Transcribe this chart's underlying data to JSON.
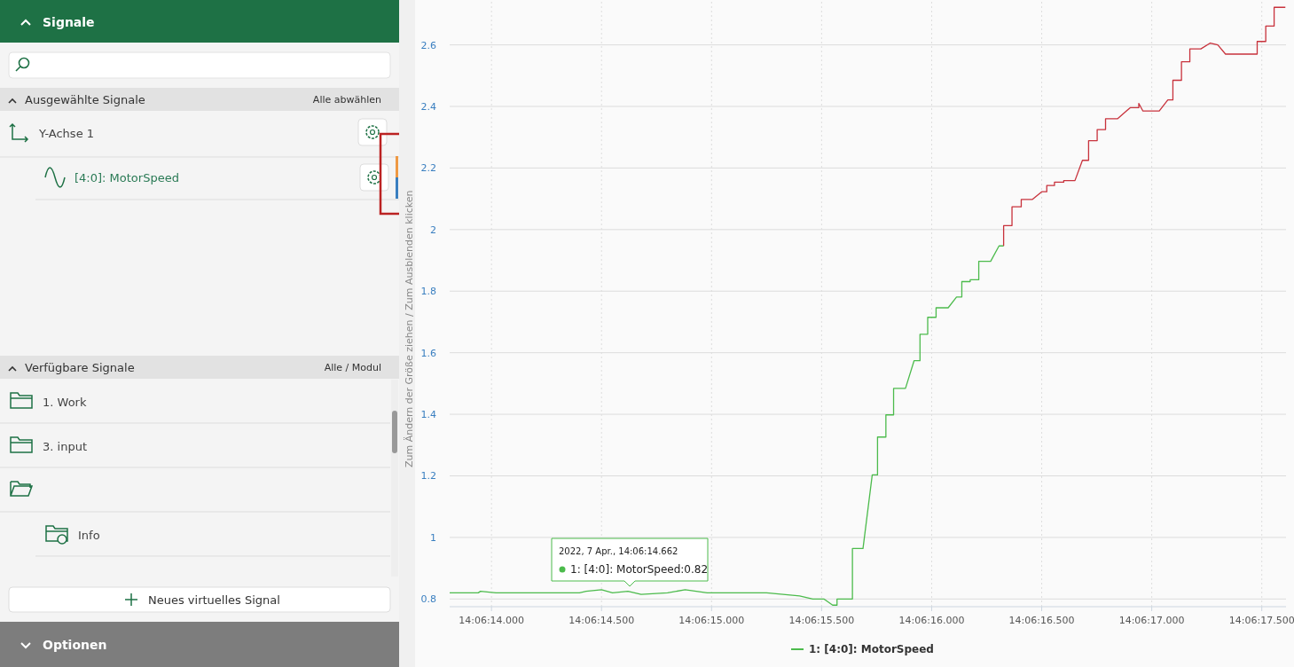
{
  "chart_data": [
    {
      "type": "other",
      "annotations": [
        "Signale",
        "Ausgewählte Signale",
        "Alle abwählen",
        "Y-Achse 1",
        "[4:0]: MotorSpeed",
        "Verfügbare Signale",
        "Alle / Modul",
        "1. Work",
        "3. input",
        "Info",
        "Neues virtuelles Signal",
        "Optionen",
        "Zum Ändern der Größe ziehen / Zum Ausblenden klicken"
      ]
    },
    {
      "type": "line",
      "xlim": [
        "2022-04-07T14:06:13.810",
        "2022-04-07T14:06:17.610"
      ],
      "ylim": [
        0.775,
        2.74
      ],
      "xticks": [
        {
          "value": "2022-04-07T14:06:14.000",
          "label": "14:06:14.000"
        },
        {
          "value": "2022-04-07T14:06:14.500",
          "label": "14:06:14.500"
        },
        {
          "value": "2022-04-07T14:06:15.000",
          "label": "14:06:15.000"
        },
        {
          "value": "2022-04-07T14:06:15.500",
          "label": "14:06:15.500"
        },
        {
          "value": "2022-04-07T14:06:16.000",
          "label": "14:06:16.000"
        },
        {
          "value": "2022-04-07T14:06:16.500",
          "label": "14:06:16.500"
        },
        {
          "value": "2022-04-07T14:06:17.000",
          "label": "14:06:17.000"
        },
        {
          "value": "2022-04-07T14:06:17.500",
          "label": "14:06:17.500"
        }
      ],
      "yticks": [
        0.8,
        1,
        1.2,
        1.4,
        1.6,
        1.8,
        2,
        2.2,
        2.4,
        2.6
      ],
      "grid": true,
      "legend": "bottom",
      "marker": "none",
      "line_style": "solid",
      "annotations": [
        "2022, 7 Apr., 14:06:14.662",
        "1: [4:0]: MotorSpeed:0.82"
      ],
      "series": [
        {
          "name": "1: [4:0]: MotorSpeed",
          "color": "#4cbb4c",
          "x": [
            "2022-04-07T14:06:13.810",
            "2022-04-07T14:06:13.940",
            "2022-04-07T14:06:13.950",
            "2022-04-07T14:06:14.020",
            "2022-04-07T14:06:14.400",
            "2022-04-07T14:06:14.430",
            "2022-04-07T14:06:14.500",
            "2022-04-07T14:06:14.550",
            "2022-04-07T14:06:14.620",
            "2022-04-07T14:06:14.680",
            "2022-04-07T14:06:14.800",
            "2022-04-07T14:06:14.880",
            "2022-04-07T14:06:14.980",
            "2022-04-07T14:06:15.250",
            "2022-04-07T14:06:15.400",
            "2022-04-07T14:06:15.460",
            "2022-04-07T14:06:15.500",
            "2022-04-07T14:06:15.510",
            "2022-04-07T14:06:15.550",
            "2022-04-07T14:06:15.570",
            "2022-04-07T14:06:15.570",
            "2022-04-07T14:06:15.640",
            "2022-04-07T14:06:15.640",
            "2022-04-07T14:06:15.688",
            "2022-04-07T14:06:15.730",
            "2022-04-07T14:06:15.754",
            "2022-04-07T14:06:15.754",
            "2022-04-07T14:06:15.792",
            "2022-04-07T14:06:15.792",
            "2022-04-07T14:06:15.827",
            "2022-04-07T14:06:15.827",
            "2022-04-07T14:06:15.881",
            "2022-04-07T14:06:15.920",
            "2022-04-07T14:06:15.947",
            "2022-04-07T14:06:15.947",
            "2022-04-07T14:06:15.982",
            "2022-04-07T14:06:15.982",
            "2022-04-07T14:06:16.020",
            "2022-04-07T14:06:16.020",
            "2022-04-07T14:06:16.075",
            "2022-04-07T14:06:16.113",
            "2022-04-07T14:06:16.137",
            "2022-04-07T14:06:16.137",
            "2022-04-07T14:06:16.175",
            "2022-04-07T14:06:16.175",
            "2022-04-07T14:06:16.214",
            "2022-04-07T14:06:16.214",
            "2022-04-07T14:06:16.268",
            "2022-04-07T14:06:16.306",
            "2022-04-07T14:06:16.327"
          ],
          "values": [
            0.82,
            0.82,
            0.825,
            0.82,
            0.82,
            0.825,
            0.83,
            0.82,
            0.825,
            0.815,
            0.82,
            0.83,
            0.82,
            0.82,
            0.81,
            0.8,
            0.8,
            0.8,
            0.78,
            0.78,
            0.8,
            0.8,
            0.964,
            0.964,
            1.203,
            1.203,
            1.326,
            1.326,
            1.398,
            1.398,
            1.484,
            1.484,
            1.574,
            1.574,
            1.66,
            1.66,
            1.715,
            1.715,
            1.746,
            1.746,
            1.781,
            1.781,
            1.831,
            1.831,
            1.837,
            1.837,
            1.897,
            1.897,
            1.947,
            1.947
          ]
        },
        {
          "color": "#c8323c",
          "x": [
            "2022-04-07T14:06:16.327",
            "2022-04-07T14:06:16.327",
            "2022-04-07T14:06:16.365",
            "2022-04-07T14:06:16.365",
            "2022-04-07T14:06:16.407",
            "2022-04-07T14:06:16.407",
            "2022-04-07T14:06:16.458",
            "2022-04-07T14:06:16.500",
            "2022-04-07T14:06:16.523",
            "2022-04-07T14:06:16.523",
            "2022-04-07T14:06:16.558",
            "2022-04-07T14:06:16.558",
            "2022-04-07T14:06:16.600",
            "2022-04-07T14:06:16.600",
            "2022-04-07T14:06:16.651",
            "2022-04-07T14:06:16.685",
            "2022-04-07T14:06:16.713",
            "2022-04-07T14:06:16.713",
            "2022-04-07T14:06:16.752",
            "2022-04-07T14:06:16.752",
            "2022-04-07T14:06:16.790",
            "2022-04-07T14:06:16.790",
            "2022-04-07T14:06:16.844",
            "2022-04-07T14:06:16.902",
            "2022-04-07T14:06:16.941",
            "2022-04-07T14:06:16.941",
            "2022-04-07T14:06:16.960",
            "2022-04-07T14:06:16.975",
            "2022-04-07T14:06:17.034",
            "2022-04-07T14:06:17.073",
            "2022-04-07T14:06:17.096",
            "2022-04-07T14:06:17.096",
            "2022-04-07T14:06:17.135",
            "2022-04-07T14:06:17.135",
            "2022-04-07T14:06:17.173",
            "2022-04-07T14:06:17.173",
            "2022-04-07T14:06:17.223",
            "2022-04-07T14:06:17.266",
            "2022-04-07T14:06:17.300",
            "2022-04-07T14:06:17.335",
            "2022-04-07T14:06:17.479",
            "2022-04-07T14:06:17.479",
            "2022-04-07T14:06:17.518",
            "2022-04-07T14:06:17.518",
            "2022-04-07T14:06:17.556",
            "2022-04-07T14:06:17.556",
            "2022-04-07T14:06:17.607"
          ],
          "values": [
            1.947,
            2.013,
            2.013,
            2.074,
            2.074,
            2.098,
            2.098,
            2.123,
            2.123,
            2.143,
            2.143,
            2.154,
            2.154,
            2.159,
            2.159,
            2.225,
            2.225,
            2.289,
            2.289,
            2.325,
            2.325,
            2.36,
            2.36,
            2.396,
            2.396,
            2.41,
            2.385,
            2.385,
            2.385,
            2.421,
            2.421,
            2.485,
            2.485,
            2.545,
            2.545,
            2.587,
            2.587,
            2.606,
            2.6,
            2.57,
            2.57,
            2.611,
            2.611,
            2.661,
            2.661,
            2.722,
            2.722
          ]
        }
      ]
    }
  ]
}
